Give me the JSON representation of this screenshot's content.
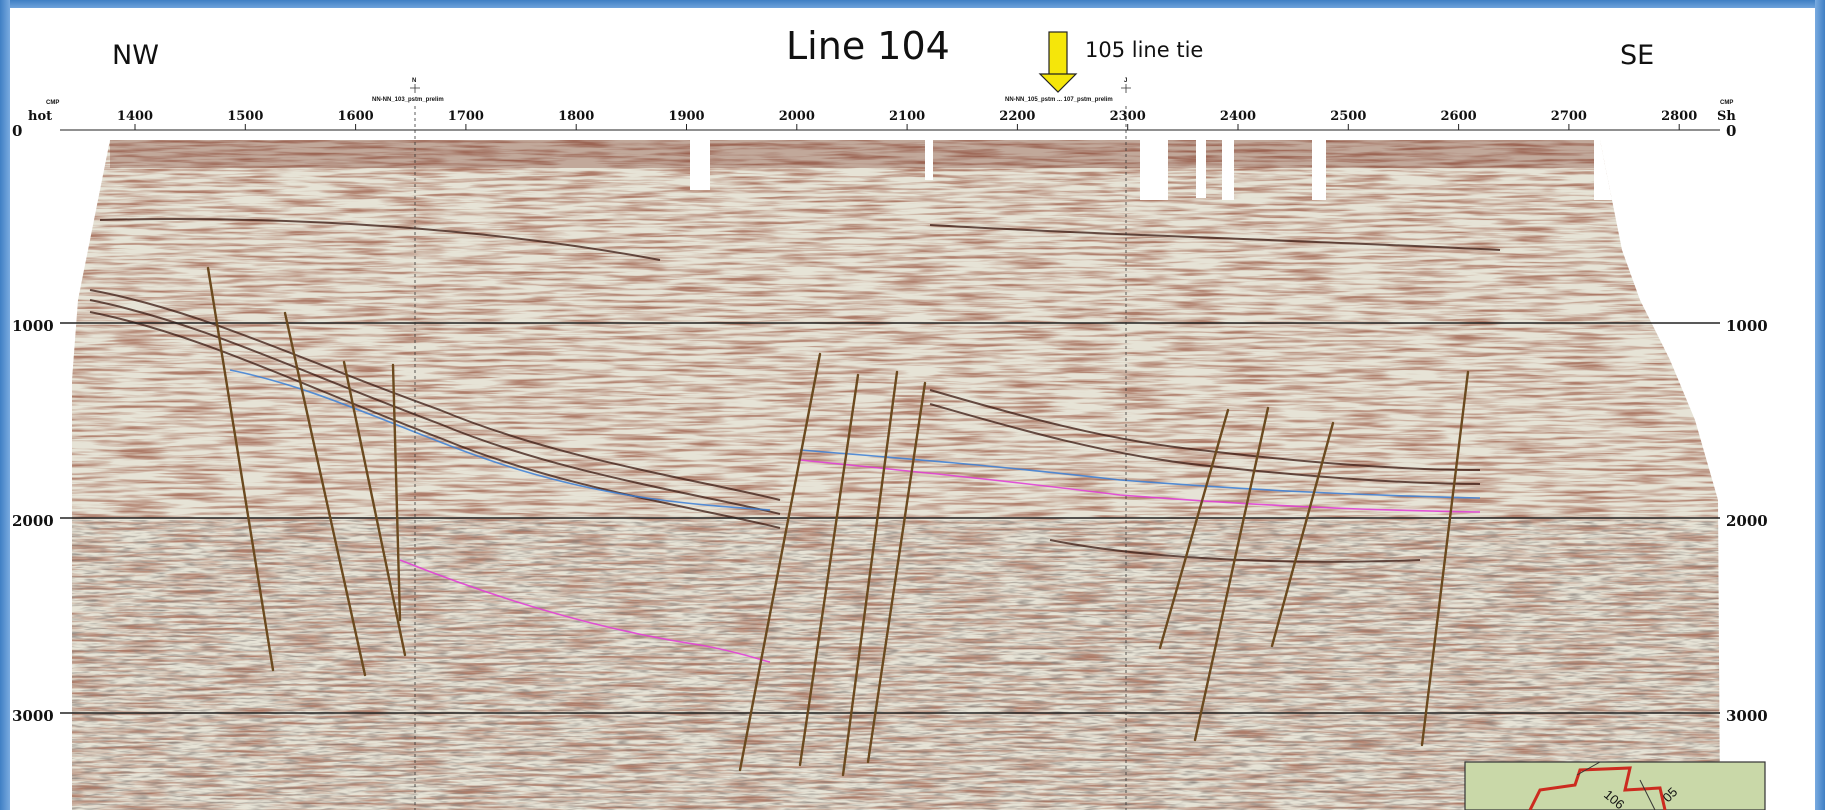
{
  "title": "Line 104",
  "left_direction": "NW",
  "right_direction": "SE",
  "tie_label": "105 line tie",
  "colors": {
    "arrow_fill": "#f5e60a",
    "fault": "#6b4a1f",
    "horizon_magenta": "#e23bd6",
    "horizon_blue": "#3b7fd6",
    "frame": "#3f7fc4"
  },
  "chart_data": {
    "type": "seismic section",
    "cmp_ticks": [
      1400,
      1500,
      1600,
      1700,
      1800,
      1900,
      2000,
      2100,
      2200,
      2300,
      2400,
      2500,
      2600,
      2700,
      2800
    ],
    "cmp_left_label": "hot",
    "cmp_right_label": "Sh",
    "cmp_header": "CMP",
    "time_ticks": [
      0,
      1000,
      2000,
      3000
    ],
    "line_tie_labels": [
      "NN-NN_103_pstm_prelim",
      "NN-NN_105_pstm ... 107_pstm_prelim"
    ],
    "line_tie_markers": [
      "N",
      "J"
    ]
  },
  "inset_map": {
    "labels": [
      "106",
      "05"
    ]
  },
  "icons": [
    "down-arrow-icon"
  ]
}
